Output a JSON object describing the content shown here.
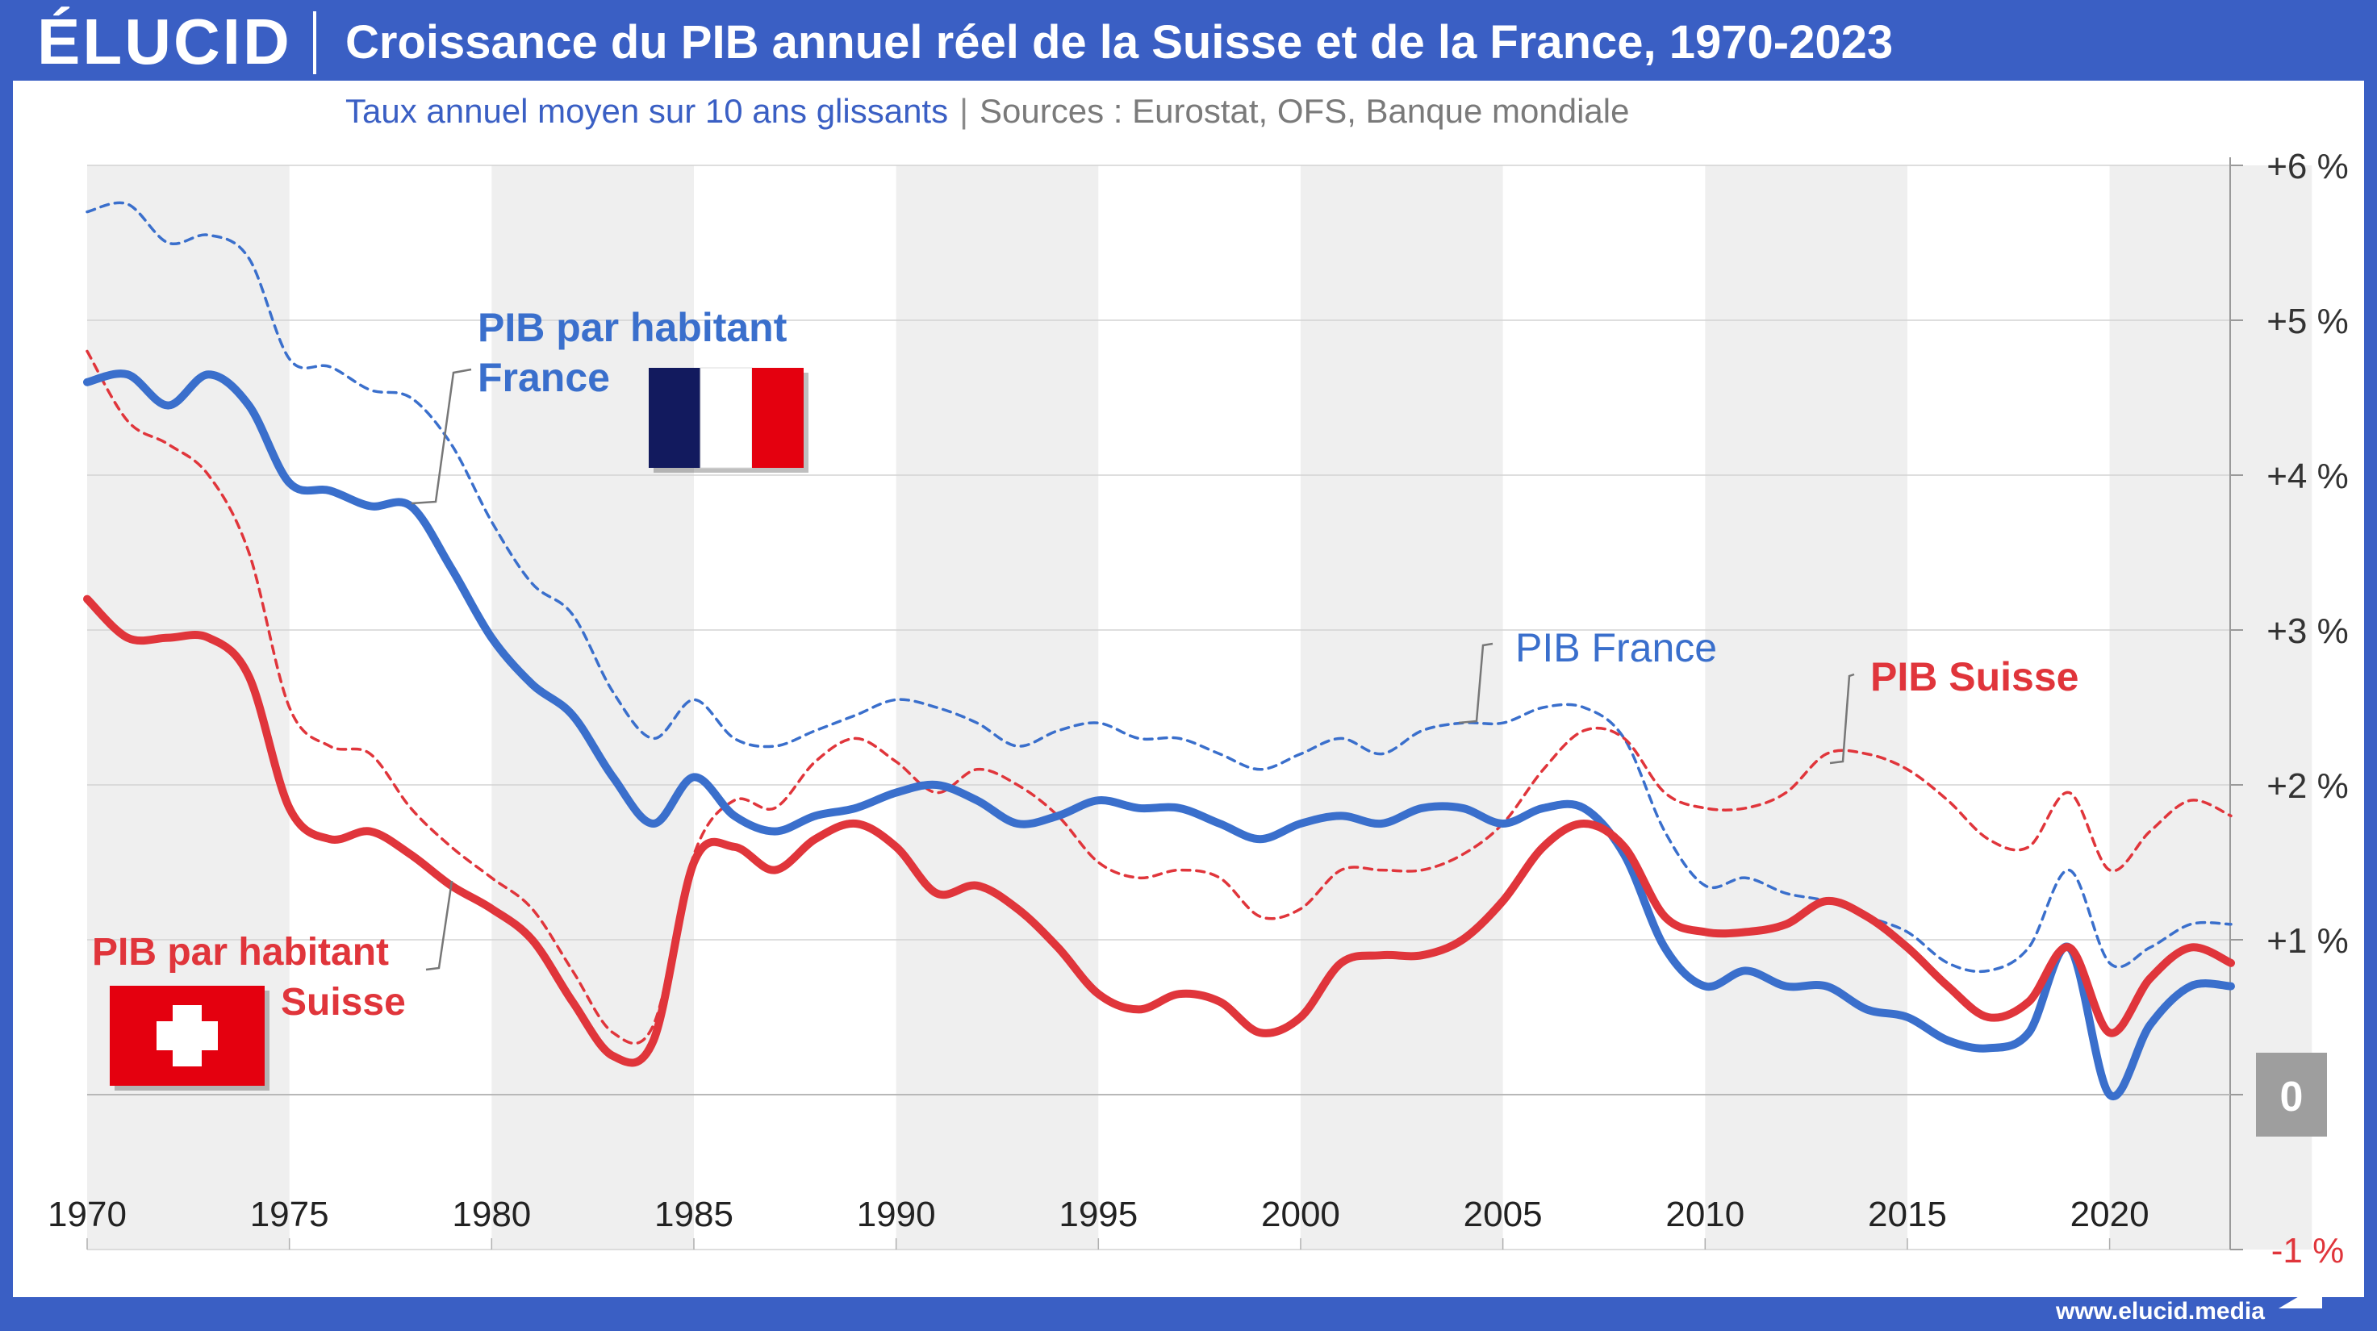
{
  "header": {
    "logo": "ÉLUCID",
    "title": "Croissance du PIB annuel réel de la Suisse et de la France, 1970-2023",
    "subtitle": "Taux annuel moyen sur 10 ans glissants",
    "subtitle_separator": "|",
    "sources": "Sources : Eurostat, OFS, Banque mondiale"
  },
  "footer": {
    "url": "www.elucid.media"
  },
  "colors": {
    "blue": "#3a6fcc",
    "red": "#e0353b",
    "frame": "#3a5fc4",
    "band": "#efefef"
  },
  "chart_data": {
    "type": "line",
    "x_ticks": [
      "1970",
      "1975",
      "1980",
      "1985",
      "1990",
      "1995",
      "2000",
      "2005",
      "2010",
      "2015",
      "2020"
    ],
    "y_ticks": [
      "+6 %",
      "+5 %",
      "+4 %",
      "+3 %",
      "+2 %",
      "+1 %",
      "0",
      "-1 %"
    ],
    "y_tick_values": [
      6,
      5,
      4,
      3,
      2,
      1,
      0,
      -1
    ],
    "xlim": [
      1970,
      2023
    ],
    "ylim": [
      -1,
      6
    ],
    "grid": true,
    "series": [
      {
        "name": "PIB France",
        "color": "#3a6fcc",
        "style": "dashed",
        "x": [
          1970,
          1971,
          1972,
          1973,
          1974,
          1975,
          1976,
          1977,
          1978,
          1979,
          1980,
          1981,
          1982,
          1983,
          1984,
          1985,
          1986,
          1987,
          1988,
          1989,
          1990,
          1991,
          1992,
          1993,
          1994,
          1995,
          1996,
          1997,
          1998,
          1999,
          2000,
          2001,
          2002,
          2003,
          2004,
          2005,
          2006,
          2007,
          2008,
          2009,
          2010,
          2011,
          2012,
          2013,
          2014,
          2015,
          2016,
          2017,
          2018,
          2019,
          2020,
          2021,
          2022,
          2023
        ],
        "values": [
          5.7,
          5.75,
          5.5,
          5.55,
          5.4,
          4.75,
          4.7,
          4.55,
          4.5,
          4.2,
          3.7,
          3.3,
          3.1,
          2.6,
          2.3,
          2.55,
          2.3,
          2.25,
          2.35,
          2.45,
          2.55,
          2.5,
          2.4,
          2.25,
          2.35,
          2.4,
          2.3,
          2.3,
          2.2,
          2.1,
          2.2,
          2.3,
          2.2,
          2.35,
          2.4,
          2.4,
          2.5,
          2.5,
          2.3,
          1.7,
          1.35,
          1.4,
          1.3,
          1.25,
          1.15,
          1.05,
          0.85,
          0.8,
          0.95,
          1.45,
          0.85,
          0.95,
          1.1,
          1.1
        ]
      },
      {
        "name": "PIB Suisse",
        "color": "#e0353b",
        "style": "dashed",
        "x": [
          1970,
          1971,
          1972,
          1973,
          1974,
          1975,
          1976,
          1977,
          1978,
          1979,
          1980,
          1981,
          1982,
          1983,
          1984,
          1985,
          1986,
          1987,
          1988,
          1989,
          1990,
          1991,
          1992,
          1993,
          1994,
          1995,
          1996,
          1997,
          1998,
          1999,
          2000,
          2001,
          2002,
          2003,
          2004,
          2005,
          2006,
          2007,
          2008,
          2009,
          2010,
          2011,
          2012,
          2013,
          2014,
          2015,
          2016,
          2017,
          2018,
          2019,
          2020,
          2021,
          2022,
          2023
        ],
        "values": [
          4.8,
          4.35,
          4.2,
          4.0,
          3.5,
          2.5,
          2.25,
          2.2,
          1.85,
          1.6,
          1.4,
          1.2,
          0.8,
          0.4,
          0.45,
          1.55,
          1.9,
          1.85,
          2.15,
          2.3,
          2.15,
          1.95,
          2.1,
          2.0,
          1.8,
          1.5,
          1.4,
          1.45,
          1.4,
          1.15,
          1.2,
          1.45,
          1.45,
          1.45,
          1.55,
          1.75,
          2.1,
          2.35,
          2.3,
          1.95,
          1.85,
          1.85,
          1.95,
          2.2,
          2.2,
          2.1,
          1.9,
          1.65,
          1.6,
          1.95,
          1.45,
          1.7,
          1.9,
          1.8
        ]
      },
      {
        "name": "PIB par habitant France",
        "color": "#3a6fcc",
        "style": "solid",
        "x": [
          1970,
          1971,
          1972,
          1973,
          1974,
          1975,
          1976,
          1977,
          1978,
          1979,
          1980,
          1981,
          1982,
          1983,
          1984,
          1985,
          1986,
          1987,
          1988,
          1989,
          1990,
          1991,
          1992,
          1993,
          1994,
          1995,
          1996,
          1997,
          1998,
          1999,
          2000,
          2001,
          2002,
          2003,
          2004,
          2005,
          2006,
          2007,
          2008,
          2009,
          2010,
          2011,
          2012,
          2013,
          2014,
          2015,
          2016,
          2017,
          2018,
          2019,
          2020,
          2021,
          2022,
          2023
        ],
        "values": [
          4.6,
          4.65,
          4.45,
          4.65,
          4.45,
          3.95,
          3.9,
          3.8,
          3.8,
          3.4,
          2.95,
          2.65,
          2.45,
          2.05,
          1.75,
          2.05,
          1.8,
          1.7,
          1.8,
          1.85,
          1.95,
          2.0,
          1.9,
          1.75,
          1.8,
          1.9,
          1.85,
          1.85,
          1.75,
          1.65,
          1.75,
          1.8,
          1.75,
          1.85,
          1.85,
          1.75,
          1.85,
          1.85,
          1.55,
          0.95,
          0.7,
          0.8,
          0.7,
          0.7,
          0.55,
          0.5,
          0.35,
          0.3,
          0.4,
          0.95,
          0.0,
          0.45,
          0.7,
          0.7
        ]
      },
      {
        "name": "PIB par habitant Suisse",
        "color": "#e0353b",
        "style": "solid",
        "x": [
          1970,
          1971,
          1972,
          1973,
          1974,
          1975,
          1976,
          1977,
          1978,
          1979,
          1980,
          1981,
          1982,
          1983,
          1984,
          1985,
          1986,
          1987,
          1988,
          1989,
          1990,
          1991,
          1992,
          1993,
          1994,
          1995,
          1996,
          1997,
          1998,
          1999,
          2000,
          2001,
          2002,
          2003,
          2004,
          2005,
          2006,
          2007,
          2008,
          2009,
          2010,
          2011,
          2012,
          2013,
          2014,
          2015,
          2016,
          2017,
          2018,
          2019,
          2020,
          2021,
          2022,
          2023
        ],
        "values": [
          3.2,
          2.95,
          2.95,
          2.95,
          2.7,
          1.85,
          1.65,
          1.7,
          1.55,
          1.35,
          1.2,
          1.0,
          0.6,
          0.25,
          0.35,
          1.5,
          1.6,
          1.45,
          1.65,
          1.75,
          1.6,
          1.3,
          1.35,
          1.2,
          0.95,
          0.65,
          0.55,
          0.65,
          0.6,
          0.4,
          0.5,
          0.85,
          0.9,
          0.9,
          1.0,
          1.25,
          1.6,
          1.75,
          1.6,
          1.15,
          1.05,
          1.05,
          1.1,
          1.25,
          1.15,
          0.95,
          0.7,
          0.5,
          0.6,
          0.95,
          0.4,
          0.75,
          0.95,
          0.85
        ]
      }
    ],
    "labels": {
      "pib_hab_france": [
        "PIB par habitant",
        "France"
      ],
      "pib_france": "PIB France",
      "pib_suisse": "PIB Suisse",
      "pib_hab_suisse": [
        "PIB par habitant",
        "Suisse"
      ]
    }
  }
}
